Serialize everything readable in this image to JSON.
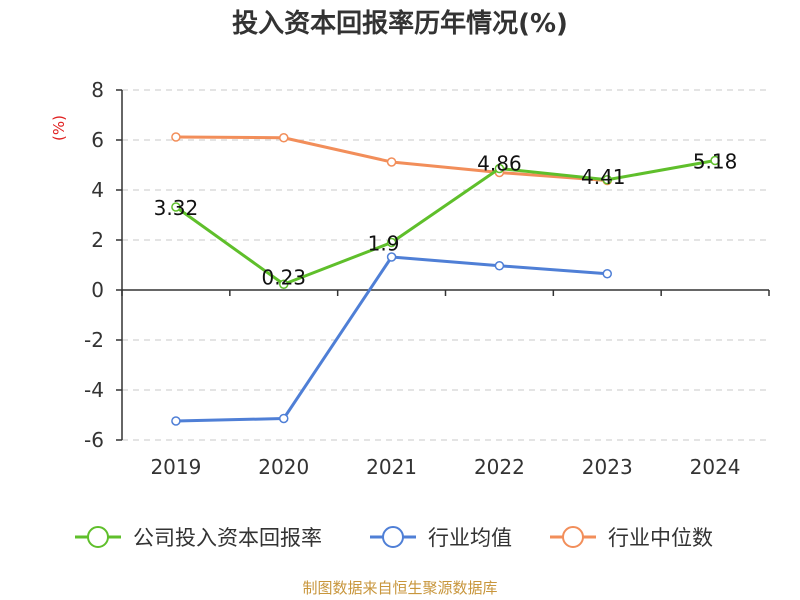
{
  "chart_data": {
    "type": "line",
    "title": "投入资本回报率历年情况(%)",
    "ylabel": "(%)",
    "xlabel": "",
    "categories": [
      "2019",
      "2020",
      "2021",
      "2022",
      "2023",
      "2024"
    ],
    "ylim": [
      -6,
      8
    ],
    "yticks": [
      8,
      6,
      4,
      2,
      0,
      -2,
      -4,
      -6
    ],
    "grid": true,
    "legend_position": "bottom",
    "series": [
      {
        "name": "公司投入资本回报率",
        "color": "#5fbf2b",
        "values": [
          3.32,
          0.23,
          1.9,
          4.86,
          4.41,
          5.18
        ],
        "labels": [
          "3.32",
          "0.23",
          "1.9",
          "4.86",
          "4.41",
          "5.18"
        ]
      },
      {
        "name": "行业均值",
        "color": "#4f7fd6",
        "values": [
          -5.24,
          -5.14,
          1.32,
          0.97,
          0.65,
          null
        ]
      },
      {
        "name": "行业中位数",
        "color": "#f28e5a",
        "values": [
          6.12,
          6.09,
          5.12,
          4.7,
          4.38,
          null
        ]
      }
    ]
  },
  "source": "制图数据来自恒生聚源数据库"
}
